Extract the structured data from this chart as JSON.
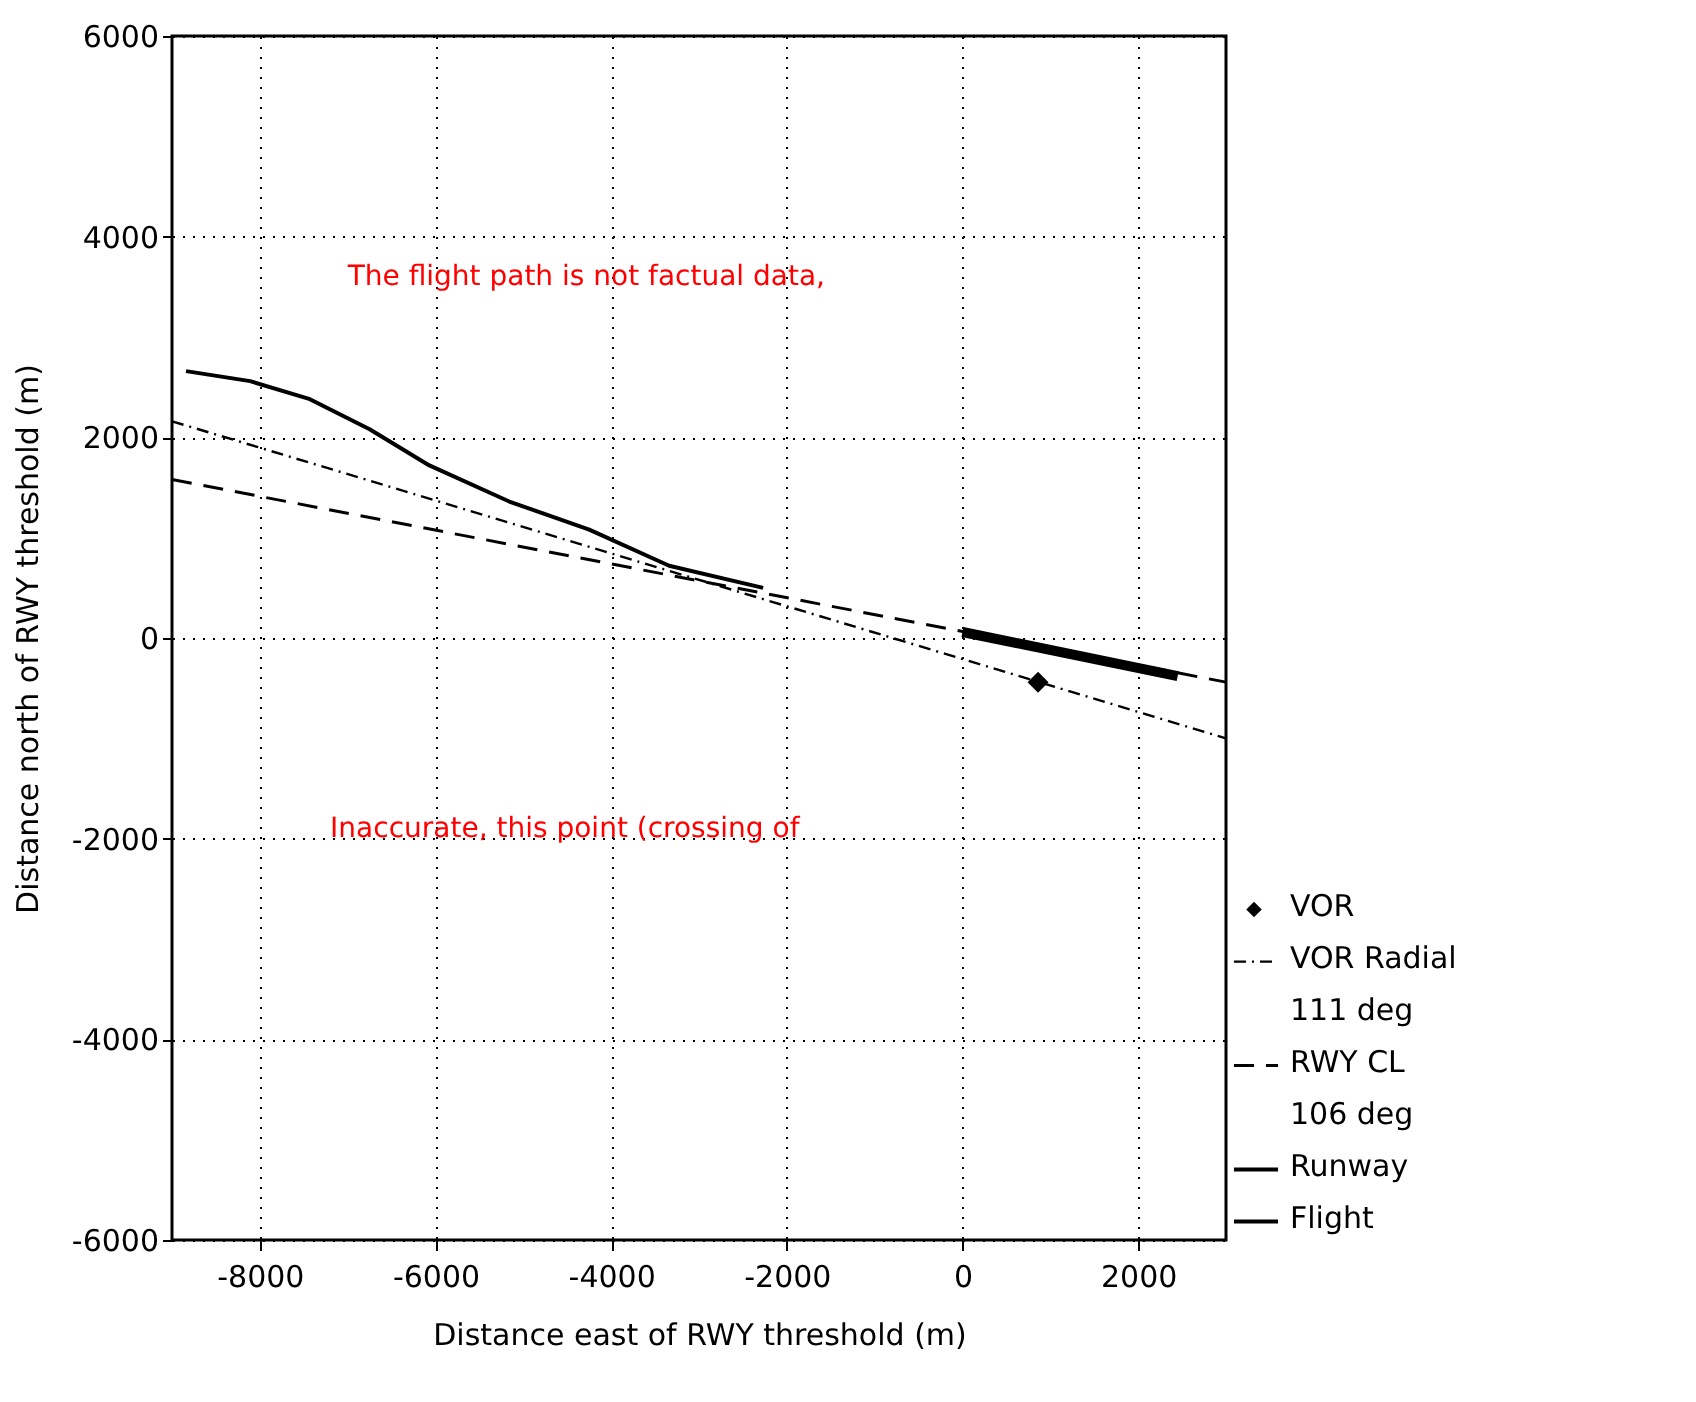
{
  "chart_data": {
    "type": "line",
    "xlabel": "Distance east of RWY threshold (m)",
    "ylabel": "Distance north of RWY threshold (m)",
    "xlim": [
      -9000,
      3000
    ],
    "xticks": [
      -8000,
      -6000,
      -4000,
      -2000,
      0,
      2000
    ],
    "ylim": [
      -6000,
      6000
    ],
    "yticks": [
      -6000,
      -4000,
      -2000,
      0,
      2000,
      4000,
      6000
    ],
    "grid": true,
    "legend": "right",
    "series": [
      {
        "name": "VOR",
        "type": "scatter",
        "marker": "diamond",
        "color": "#000000",
        "x": [
          860
        ],
        "values": [
          -440
        ]
      },
      {
        "name": "VOR Radial\n111 deg",
        "type": "line",
        "line_style": "dashdot",
        "color": "#000000",
        "x": [
          -9000,
          3000
        ],
        "values": [
          2160,
          -1000
        ]
      },
      {
        "name": "RWY CL\n106 deg",
        "type": "line",
        "line_style": "dashed",
        "color": "#000000",
        "x": [
          -9000,
          3000
        ],
        "values": [
          1580,
          -440
        ]
      },
      {
        "name": "Runway",
        "type": "line",
        "line_style": "solid",
        "color": "#000000",
        "x": [
          0,
          2450
        ],
        "values": [
          60,
          -380
        ]
      },
      {
        "name": "Flight",
        "type": "line",
        "line_style": "solid",
        "color": "#000000",
        "x": [
          -8840,
          -8110,
          -7430,
          -6750,
          -6070,
          -5160,
          -4250,
          -3340,
          -2270
        ],
        "values": [
          2660,
          2560,
          2380,
          2080,
          1720,
          1360,
          1080,
          720,
          500
        ]
      }
    ],
    "annotations": [
      "The flight path is not factual data,",
      "Inaccurate, this point (crossing of"
    ]
  }
}
